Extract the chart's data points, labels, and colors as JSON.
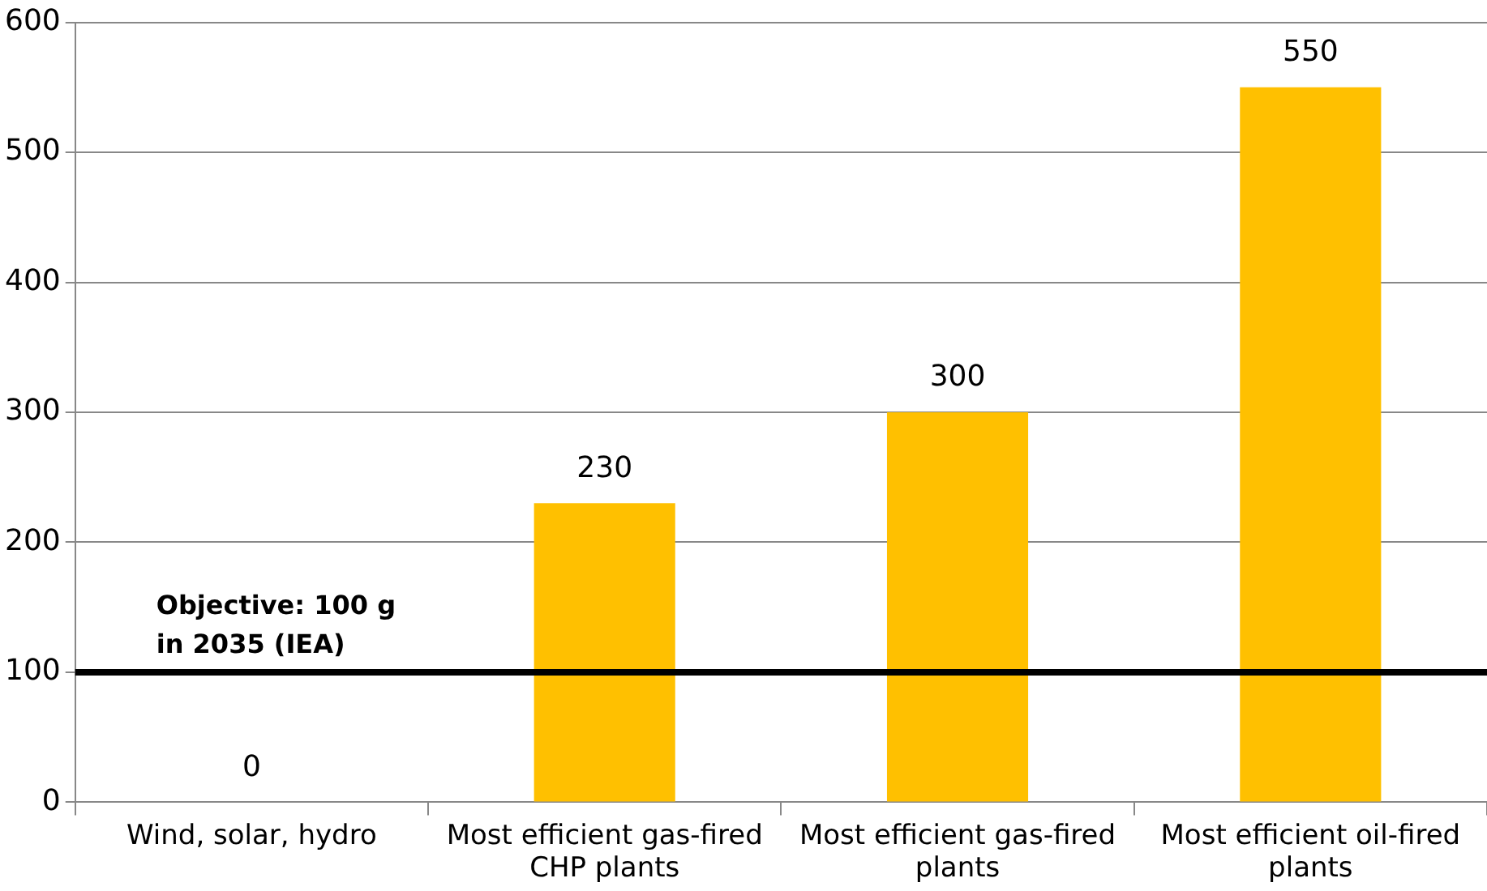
{
  "chart_data": {
    "type": "bar",
    "categories": [
      "Wind, solar, hydro",
      "Most efficient gas-fired CHP plants",
      "Most efficient gas-fired plants",
      "Most efficient oil-fired plants"
    ],
    "values": [
      0,
      230,
      300,
      550
    ],
    "color": "#ffc000",
    "ylim": [
      0,
      600
    ],
    "yticks": [
      0,
      100,
      200,
      300,
      400,
      500,
      600
    ],
    "grid": "y",
    "legend": false,
    "data_labels": true,
    "ref_lines": [
      {
        "axis": "y",
        "value": 100,
        "label": "Objective: 100 g in 2035 (IEA)",
        "color": "#000000"
      }
    ]
  }
}
